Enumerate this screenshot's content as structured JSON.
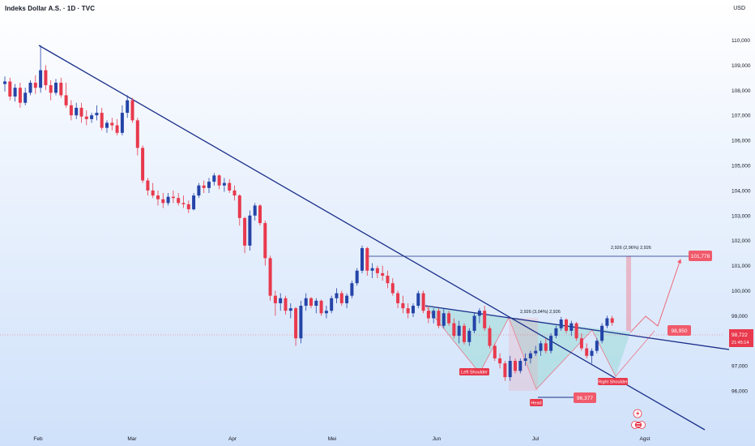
{
  "header": {
    "title": "Indeks Dollar A.S. · 1D · TVC",
    "currency": "USD"
  },
  "colors": {
    "up": "#2444a8",
    "down": "#e8394d",
    "trend": "#1a2f8a",
    "label": "#f05a6b",
    "zone": "#8fd6cf"
  },
  "chart_data": {
    "type": "candlestick",
    "title": "Indeks Dollar A.S. · 1D · TVC",
    "y_unit": "USD",
    "ylim": [
      95500,
      110700
    ],
    "yticks": [
      "110,000",
      "109,000",
      "108,000",
      "107,000",
      "106,000",
      "105,000",
      "104,000",
      "103,000",
      "102,000",
      "101,000",
      "100,000",
      "99,000",
      "98,000",
      "97,000",
      "96,000"
    ],
    "x_months": [
      "Feb",
      "Mar",
      "Apr",
      "Mei",
      "Jun",
      "Jul",
      "Agst"
    ],
    "current_price": "98,722",
    "countdown": "21:45:14",
    "levels": {
      "neckline_top": 101778,
      "breakout": 98950,
      "head_low": 96377
    },
    "labels": {
      "target": "101,778",
      "breakout": "98,950",
      "head_price": "96,377",
      "left_shoulder": "Left Shoulder",
      "head": "Head",
      "right_shoulder": "Right Shoulder",
      "measure_1": "2,926 (3,04%) 2,926",
      "measure_2": "2,926 (2,96%) 2,926"
    },
    "candles": [
      [
        108.25,
        108.55,
        107.95,
        108.35
      ],
      [
        108.35,
        108.5,
        107.6,
        107.75
      ],
      [
        107.75,
        108.25,
        107.55,
        108.1
      ],
      [
        108.1,
        108.3,
        107.3,
        107.5
      ],
      [
        107.5,
        108.1,
        107.4,
        107.9
      ],
      [
        107.9,
        108.4,
        107.8,
        108.3
      ],
      [
        108.3,
        108.6,
        107.85,
        108.1
      ],
      [
        108.1,
        109.8,
        107.9,
        108.8
      ],
      [
        108.8,
        109.0,
        108.0,
        108.2
      ],
      [
        108.2,
        108.4,
        107.6,
        107.9
      ],
      [
        107.9,
        108.45,
        107.8,
        108.3
      ],
      [
        108.3,
        108.5,
        107.7,
        107.8
      ],
      [
        107.8,
        108.3,
        107.3,
        107.4
      ],
      [
        107.4,
        107.6,
        106.8,
        107.0
      ],
      [
        107.0,
        107.5,
        106.85,
        107.3
      ],
      [
        107.3,
        107.5,
        106.7,
        106.95
      ],
      [
        106.95,
        107.2,
        106.6,
        106.85
      ],
      [
        106.85,
        107.1,
        106.7,
        107.0
      ],
      [
        107.0,
        107.4,
        106.8,
        107.1
      ],
      [
        107.1,
        107.3,
        106.4,
        106.5
      ],
      [
        106.5,
        106.8,
        106.3,
        106.7
      ],
      [
        106.7,
        106.9,
        106.4,
        106.6
      ],
      [
        106.6,
        106.85,
        106.2,
        106.3
      ],
      [
        106.3,
        107.4,
        106.2,
        107.1
      ],
      [
        107.1,
        107.8,
        106.9,
        107.6
      ],
      [
        107.6,
        107.7,
        106.7,
        106.8
      ],
      [
        106.8,
        106.9,
        105.4,
        105.7
      ],
      [
        105.7,
        105.8,
        104.3,
        104.4
      ],
      [
        104.4,
        104.5,
        103.8,
        104.0
      ],
      [
        104.0,
        104.3,
        103.7,
        103.8
      ],
      [
        103.8,
        104.0,
        103.4,
        103.65
      ],
      [
        103.65,
        103.9,
        103.3,
        103.5
      ],
      [
        103.5,
        103.9,
        103.4,
        103.75
      ],
      [
        103.75,
        104.0,
        103.5,
        103.7
      ],
      [
        103.7,
        103.9,
        103.4,
        103.5
      ],
      [
        103.5,
        103.8,
        103.3,
        103.45
      ],
      [
        103.45,
        103.6,
        103.1,
        103.25
      ],
      [
        103.25,
        103.9,
        103.2,
        103.8
      ],
      [
        103.8,
        104.3,
        103.7,
        104.2
      ],
      [
        104.2,
        104.4,
        103.9,
        104.1
      ],
      [
        104.1,
        104.5,
        103.9,
        104.35
      ],
      [
        104.35,
        104.7,
        104.2,
        104.6
      ],
      [
        104.6,
        104.65,
        104.05,
        104.2
      ],
      [
        104.2,
        104.5,
        103.95,
        104.3
      ],
      [
        104.3,
        104.45,
        103.9,
        104.0
      ],
      [
        104.0,
        104.2,
        103.6,
        103.8
      ],
      [
        103.8,
        103.85,
        102.6,
        102.9
      ],
      [
        102.9,
        102.95,
        101.5,
        101.8
      ],
      [
        101.8,
        103.2,
        101.6,
        103.0
      ],
      [
        103.0,
        103.5,
        102.8,
        103.4
      ],
      [
        103.4,
        103.45,
        102.6,
        102.7
      ],
      [
        102.7,
        102.8,
        101.0,
        101.3
      ],
      [
        101.3,
        101.4,
        99.6,
        99.8
      ],
      [
        99.8,
        100.0,
        99.0,
        99.5
      ],
      [
        99.5,
        99.9,
        99.2,
        99.7
      ],
      [
        99.7,
        99.8,
        99.05,
        99.2
      ],
      [
        99.2,
        99.5,
        98.9,
        99.3
      ],
      [
        99.3,
        99.35,
        97.8,
        98.1
      ],
      [
        98.1,
        99.6,
        97.9,
        99.4
      ],
      [
        99.4,
        99.9,
        99.2,
        99.7
      ],
      [
        99.7,
        99.75,
        99.3,
        99.4
      ],
      [
        99.4,
        99.7,
        99.1,
        99.6
      ],
      [
        99.6,
        99.65,
        99.0,
        99.1
      ],
      [
        99.1,
        99.4,
        98.9,
        99.2
      ],
      [
        99.2,
        99.8,
        99.1,
        99.7
      ],
      [
        99.7,
        100.1,
        99.5,
        99.9
      ],
      [
        99.9,
        100.0,
        99.4,
        99.5
      ],
      [
        99.5,
        99.9,
        99.3,
        99.8
      ],
      [
        99.8,
        100.4,
        99.7,
        100.3
      ],
      [
        100.3,
        100.9,
        100.2,
        100.8
      ],
      [
        100.8,
        101.8,
        100.7,
        101.7
      ],
      [
        101.7,
        101.75,
        100.6,
        100.8
      ],
      [
        100.8,
        101.1,
        100.5,
        100.9
      ],
      [
        100.9,
        101.0,
        100.5,
        100.7
      ],
      [
        100.7,
        101.0,
        100.4,
        100.6
      ],
      [
        100.6,
        100.8,
        100.1,
        100.3
      ],
      [
        100.3,
        100.5,
        99.8,
        99.9
      ],
      [
        99.9,
        100.0,
        99.3,
        99.5
      ],
      [
        99.5,
        99.8,
        99.1,
        99.3
      ],
      [
        99.3,
        99.5,
        98.9,
        99.1
      ],
      [
        99.1,
        99.5,
        98.95,
        99.4
      ],
      [
        99.4,
        100.0,
        99.3,
        99.9
      ],
      [
        99.9,
        100.0,
        99.1,
        99.2
      ],
      [
        99.2,
        99.4,
        98.7,
        98.9
      ],
      [
        98.9,
        99.3,
        98.7,
        99.2
      ],
      [
        99.2,
        99.3,
        98.5,
        98.6
      ],
      [
        98.6,
        99.3,
        98.5,
        99.1
      ],
      [
        99.1,
        99.2,
        98.6,
        98.7
      ],
      [
        98.7,
        98.9,
        98.1,
        98.2
      ],
      [
        98.2,
        98.8,
        97.9,
        98.6
      ],
      [
        98.6,
        98.7,
        97.85,
        97.95
      ],
      [
        97.95,
        98.5,
        97.8,
        98.4
      ],
      [
        98.4,
        99.1,
        98.3,
        99.0
      ],
      [
        99.0,
        99.3,
        98.7,
        99.2
      ],
      [
        99.2,
        99.4,
        98.4,
        98.5
      ],
      [
        98.5,
        98.6,
        97.7,
        97.8
      ],
      [
        97.8,
        97.9,
        97.2,
        97.3
      ],
      [
        97.3,
        97.5,
        96.9,
        97.1
      ],
      [
        97.1,
        97.2,
        96.4,
        96.55
      ],
      [
        96.55,
        97.4,
        96.4,
        97.2
      ],
      [
        97.2,
        97.3,
        96.7,
        96.8
      ],
      [
        96.8,
        97.3,
        96.7,
        97.2
      ],
      [
        97.2,
        97.5,
        97.0,
        97.3
      ],
      [
        97.3,
        97.6,
        97.1,
        97.5
      ],
      [
        97.5,
        97.8,
        97.4,
        97.6
      ],
      [
        97.6,
        98.0,
        97.4,
        97.9
      ],
      [
        97.9,
        98.1,
        97.5,
        97.6
      ],
      [
        97.6,
        98.3,
        97.5,
        98.2
      ],
      [
        98.2,
        98.6,
        98.1,
        98.5
      ],
      [
        98.5,
        98.95,
        98.4,
        98.85
      ],
      [
        98.85,
        98.9,
        98.3,
        98.4
      ],
      [
        98.4,
        98.8,
        98.2,
        98.7
      ],
      [
        98.7,
        98.75,
        98.0,
        98.1
      ],
      [
        98.1,
        98.3,
        97.6,
        97.7
      ],
      [
        97.7,
        97.9,
        97.3,
        97.4
      ],
      [
        97.4,
        97.7,
        97.1,
        97.6
      ],
      [
        97.6,
        98.1,
        97.5,
        98.0
      ],
      [
        98.0,
        98.7,
        97.9,
        98.6
      ],
      [
        98.6,
        99.0,
        98.5,
        98.9
      ],
      [
        98.9,
        99.0,
        98.6,
        98.72
      ]
    ]
  }
}
